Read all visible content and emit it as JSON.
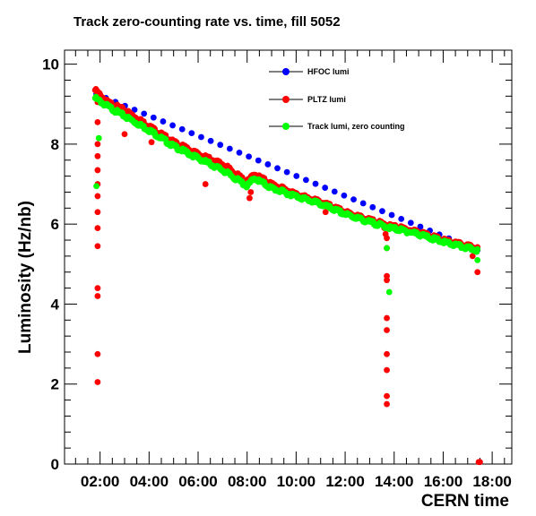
{
  "chart_data": {
    "type": "scatter",
    "title": "Track zero-counting rate vs. time, fill 5052",
    "xlabel": "CERN time",
    "ylabel": "Luminosity (Hz/nb)",
    "xlim": [
      0.55,
      18.8
    ],
    "ylim": [
      0,
      10.35
    ],
    "x_ticks": [
      "02:00",
      "04:00",
      "06:00",
      "08:00",
      "10:00",
      "12:00",
      "14:00",
      "16:00",
      "18:00"
    ],
    "x_tick_hours": [
      2,
      4,
      6,
      8,
      10,
      12,
      14,
      16,
      18
    ],
    "y_ticks": [
      "0",
      "2",
      "4",
      "6",
      "8",
      "10"
    ],
    "y_tick_values": [
      0,
      2,
      4,
      6,
      8,
      10
    ],
    "legend_position": "top-right",
    "series": [
      {
        "name": "HFOC lumi",
        "color": "#0000ff",
        "x": [
          1.85,
          17.4
        ],
        "y": [
          9.25,
          5.35
        ]
      },
      {
        "name": "PLTZ lumi",
        "color": "#ff0000",
        "x": [
          1.8,
          2.3,
          3.0,
          4.0,
          5.0,
          6.0,
          7.0,
          8.0,
          8.3,
          9.0,
          10.0,
          11.0,
          12.0,
          13.0,
          13.9,
          14.3,
          15.0,
          16.0,
          17.0,
          17.4
        ],
        "y": [
          9.35,
          9.05,
          8.85,
          8.45,
          8.05,
          7.75,
          7.5,
          7.05,
          7.25,
          7.0,
          6.75,
          6.55,
          6.3,
          6.1,
          5.95,
          5.9,
          5.8,
          5.6,
          5.45,
          5.4
        ],
        "outliers": {
          "x": [
            1.9,
            1.9,
            1.9,
            1.9,
            1.9,
            1.9,
            1.9,
            1.9,
            1.9,
            1.9,
            1.9,
            1.9,
            1.9,
            1.9,
            3.0,
            4.1,
            6.3,
            8.1,
            8.15,
            11.2,
            13.6,
            13.65,
            13.7,
            13.7,
            13.7,
            13.7,
            13.7,
            13.7,
            13.7,
            13.7,
            13.7,
            13.7,
            17.2,
            17.4,
            17.45,
            17.5
          ],
          "y": [
            9.05,
            8.55,
            8.0,
            7.7,
            7.35,
            7.0,
            6.7,
            6.3,
            5.9,
            5.45,
            4.4,
            4.2,
            2.75,
            2.05,
            8.25,
            8.05,
            7.0,
            6.65,
            6.8,
            6.3,
            5.9,
            5.75,
            5.65,
            5.4,
            4.7,
            4.6,
            3.65,
            3.35,
            2.75,
            2.35,
            1.7,
            1.5,
            5.2,
            4.8,
            0.05,
            0.05
          ]
        }
      },
      {
        "name": "Track lumi, zero counting",
        "color": "#00ff00",
        "x": [
          1.8,
          2.3,
          3.0,
          4.0,
          5.0,
          6.0,
          7.0,
          8.0,
          8.3,
          9.0,
          10.0,
          11.0,
          12.0,
          13.0,
          13.9,
          14.3,
          15.0,
          16.0,
          17.0,
          17.4
        ],
        "y": [
          9.15,
          8.95,
          8.7,
          8.35,
          7.95,
          7.65,
          7.35,
          6.95,
          7.15,
          6.9,
          6.7,
          6.5,
          6.25,
          6.05,
          5.9,
          5.85,
          5.75,
          5.55,
          5.4,
          5.35
        ],
        "outliers": {
          "x": [
            1.95,
            1.85,
            13.7,
            13.8,
            17.4
          ],
          "y": [
            8.15,
            6.95,
            5.4,
            4.3,
            5.1
          ]
        }
      }
    ]
  }
}
